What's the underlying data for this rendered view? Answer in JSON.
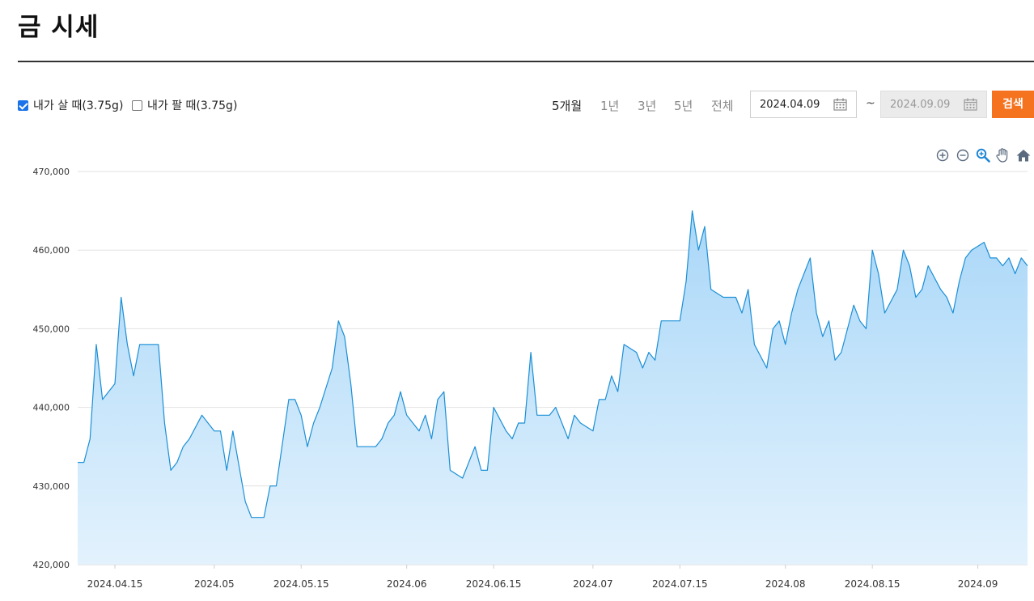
{
  "page": {
    "title": "금 시세"
  },
  "options": {
    "buy": {
      "label": "내가 살 때(3.75g)",
      "checked": true
    },
    "sell": {
      "label": "내가 팔 때(3.75g)",
      "checked": false
    }
  },
  "periods": [
    {
      "label": "5개월",
      "active": true
    },
    {
      "label": "1년",
      "active": false
    },
    {
      "label": "3년",
      "active": false
    },
    {
      "label": "5년",
      "active": false
    },
    {
      "label": "전체",
      "active": false
    }
  ],
  "date_range": {
    "start": "2024.04.09",
    "separator": "~",
    "end": "2024.09.09"
  },
  "search_label": "검색",
  "toolbar_icons": [
    "zoom-in-icon",
    "zoom-out-icon",
    "magnify-icon",
    "pan-hand-icon",
    "home-icon"
  ],
  "colors": {
    "accent": "#f5731f",
    "line": "#1b8fd6",
    "fill_top": "#a9d7f8",
    "fill_bottom": "#e3f2fd",
    "grid": "#e2e2e2"
  },
  "chart_data": {
    "type": "area",
    "title": "",
    "xlabel": "",
    "ylabel": "",
    "ylim": [
      420000,
      470000
    ],
    "yticks": [
      "420,000",
      "430,000",
      "440,000",
      "450,000",
      "460,000",
      "470,000"
    ],
    "xlim": [
      "2024-04-09",
      "2024-09-09"
    ],
    "xticks": [
      {
        "date": "2024-04-15",
        "label": "2024.04.15"
      },
      {
        "date": "2024-05-01",
        "label": "2024.05"
      },
      {
        "date": "2024-05-15",
        "label": "2024.05.15"
      },
      {
        "date": "2024-06-01",
        "label": "2024.06"
      },
      {
        "date": "2024-06-15",
        "label": "2024.06.15"
      },
      {
        "date": "2024-07-01",
        "label": "2024.07"
      },
      {
        "date": "2024-07-15",
        "label": "2024.07.15"
      },
      {
        "date": "2024-08-01",
        "label": "2024.08"
      },
      {
        "date": "2024-08-15",
        "label": "2024.08.15"
      },
      {
        "date": "2024-09-01",
        "label": "2024.09"
      }
    ],
    "grid": true,
    "legend": "none",
    "series": [
      {
        "points": [
          [
            "2024-04-09",
            433000
          ],
          [
            "2024-04-10",
            433000
          ],
          [
            "2024-04-11",
            436000
          ],
          [
            "2024-04-12",
            448000
          ],
          [
            "2024-04-13",
            441000
          ],
          [
            "2024-04-15",
            443000
          ],
          [
            "2024-04-16",
            454000
          ],
          [
            "2024-04-17",
            448000
          ],
          [
            "2024-04-18",
            444000
          ],
          [
            "2024-04-19",
            448000
          ],
          [
            "2024-04-22",
            448000
          ],
          [
            "2024-04-23",
            438000
          ],
          [
            "2024-04-24",
            432000
          ],
          [
            "2024-04-25",
            433000
          ],
          [
            "2024-04-26",
            435000
          ],
          [
            "2024-04-27",
            436000
          ],
          [
            "2024-04-29",
            439000
          ],
          [
            "2024-04-30",
            438000
          ],
          [
            "2024-05-01",
            437000
          ],
          [
            "2024-05-02",
            437000
          ],
          [
            "2024-05-03",
            432000
          ],
          [
            "2024-05-04",
            437000
          ],
          [
            "2024-05-06",
            428000
          ],
          [
            "2024-05-07",
            426000
          ],
          [
            "2024-05-08",
            426000
          ],
          [
            "2024-05-09",
            426000
          ],
          [
            "2024-05-10",
            430000
          ],
          [
            "2024-05-11",
            430000
          ],
          [
            "2024-05-13",
            441000
          ],
          [
            "2024-05-14",
            441000
          ],
          [
            "2024-05-15",
            439000
          ],
          [
            "2024-05-16",
            435000
          ],
          [
            "2024-05-17",
            438000
          ],
          [
            "2024-05-18",
            440000
          ],
          [
            "2024-05-20",
            445000
          ],
          [
            "2024-05-21",
            451000
          ],
          [
            "2024-05-22",
            449000
          ],
          [
            "2024-05-23",
            443000
          ],
          [
            "2024-05-24",
            435000
          ],
          [
            "2024-05-25",
            435000
          ],
          [
            "2024-05-27",
            435000
          ],
          [
            "2024-05-28",
            436000
          ],
          [
            "2024-05-29",
            438000
          ],
          [
            "2024-05-30",
            439000
          ],
          [
            "2024-05-31",
            442000
          ],
          [
            "2024-06-01",
            439000
          ],
          [
            "2024-06-03",
            437000
          ],
          [
            "2024-06-04",
            439000
          ],
          [
            "2024-06-05",
            436000
          ],
          [
            "2024-06-06",
            441000
          ],
          [
            "2024-06-07",
            442000
          ],
          [
            "2024-06-08",
            432000
          ],
          [
            "2024-06-10",
            431000
          ],
          [
            "2024-06-11",
            433000
          ],
          [
            "2024-06-12",
            435000
          ],
          [
            "2024-06-13",
            432000
          ],
          [
            "2024-06-14",
            432000
          ],
          [
            "2024-06-15",
            440000
          ],
          [
            "2024-06-17",
            437000
          ],
          [
            "2024-06-18",
            436000
          ],
          [
            "2024-06-19",
            438000
          ],
          [
            "2024-06-20",
            438000
          ],
          [
            "2024-06-21",
            447000
          ],
          [
            "2024-06-22",
            439000
          ],
          [
            "2024-06-24",
            439000
          ],
          [
            "2024-06-25",
            440000
          ],
          [
            "2024-06-26",
            438000
          ],
          [
            "2024-06-27",
            436000
          ],
          [
            "2024-06-28",
            439000
          ],
          [
            "2024-06-29",
            438000
          ],
          [
            "2024-07-01",
            437000
          ],
          [
            "2024-07-02",
            441000
          ],
          [
            "2024-07-03",
            441000
          ],
          [
            "2024-07-04",
            444000
          ],
          [
            "2024-07-05",
            442000
          ],
          [
            "2024-07-06",
            448000
          ],
          [
            "2024-07-08",
            447000
          ],
          [
            "2024-07-09",
            445000
          ],
          [
            "2024-07-10",
            447000
          ],
          [
            "2024-07-11",
            446000
          ],
          [
            "2024-07-12",
            451000
          ],
          [
            "2024-07-13",
            451000
          ],
          [
            "2024-07-15",
            451000
          ],
          [
            "2024-07-16",
            456000
          ],
          [
            "2024-07-17",
            465000
          ],
          [
            "2024-07-18",
            460000
          ],
          [
            "2024-07-19",
            463000
          ],
          [
            "2024-07-20",
            455000
          ],
          [
            "2024-07-22",
            454000
          ],
          [
            "2024-07-23",
            454000
          ],
          [
            "2024-07-24",
            454000
          ],
          [
            "2024-07-25",
            452000
          ],
          [
            "2024-07-26",
            455000
          ],
          [
            "2024-07-27",
            448000
          ],
          [
            "2024-07-29",
            445000
          ],
          [
            "2024-07-30",
            450000
          ],
          [
            "2024-07-31",
            451000
          ],
          [
            "2024-08-01",
            448000
          ],
          [
            "2024-08-02",
            452000
          ],
          [
            "2024-08-03",
            455000
          ],
          [
            "2024-08-05",
            459000
          ],
          [
            "2024-08-06",
            452000
          ],
          [
            "2024-08-07",
            449000
          ],
          [
            "2024-08-08",
            451000
          ],
          [
            "2024-08-09",
            446000
          ],
          [
            "2024-08-10",
            447000
          ],
          [
            "2024-08-12",
            453000
          ],
          [
            "2024-08-13",
            451000
          ],
          [
            "2024-08-14",
            450000
          ],
          [
            "2024-08-15",
            460000
          ],
          [
            "2024-08-16",
            457000
          ],
          [
            "2024-08-17",
            452000
          ],
          [
            "2024-08-19",
            455000
          ],
          [
            "2024-08-20",
            460000
          ],
          [
            "2024-08-21",
            458000
          ],
          [
            "2024-08-22",
            454000
          ],
          [
            "2024-08-23",
            455000
          ],
          [
            "2024-08-24",
            458000
          ],
          [
            "2024-08-26",
            455000
          ],
          [
            "2024-08-27",
            454000
          ],
          [
            "2024-08-28",
            452000
          ],
          [
            "2024-08-29",
            456000
          ],
          [
            "2024-08-30",
            459000
          ],
          [
            "2024-08-31",
            460000
          ],
          [
            "2024-09-02",
            461000
          ],
          [
            "2024-09-03",
            459000
          ],
          [
            "2024-09-04",
            459000
          ],
          [
            "2024-09-05",
            458000
          ],
          [
            "2024-09-06",
            459000
          ],
          [
            "2024-09-07",
            457000
          ],
          [
            "2024-09-08",
            459000
          ],
          [
            "2024-09-09",
            458000
          ]
        ]
      }
    ]
  }
}
